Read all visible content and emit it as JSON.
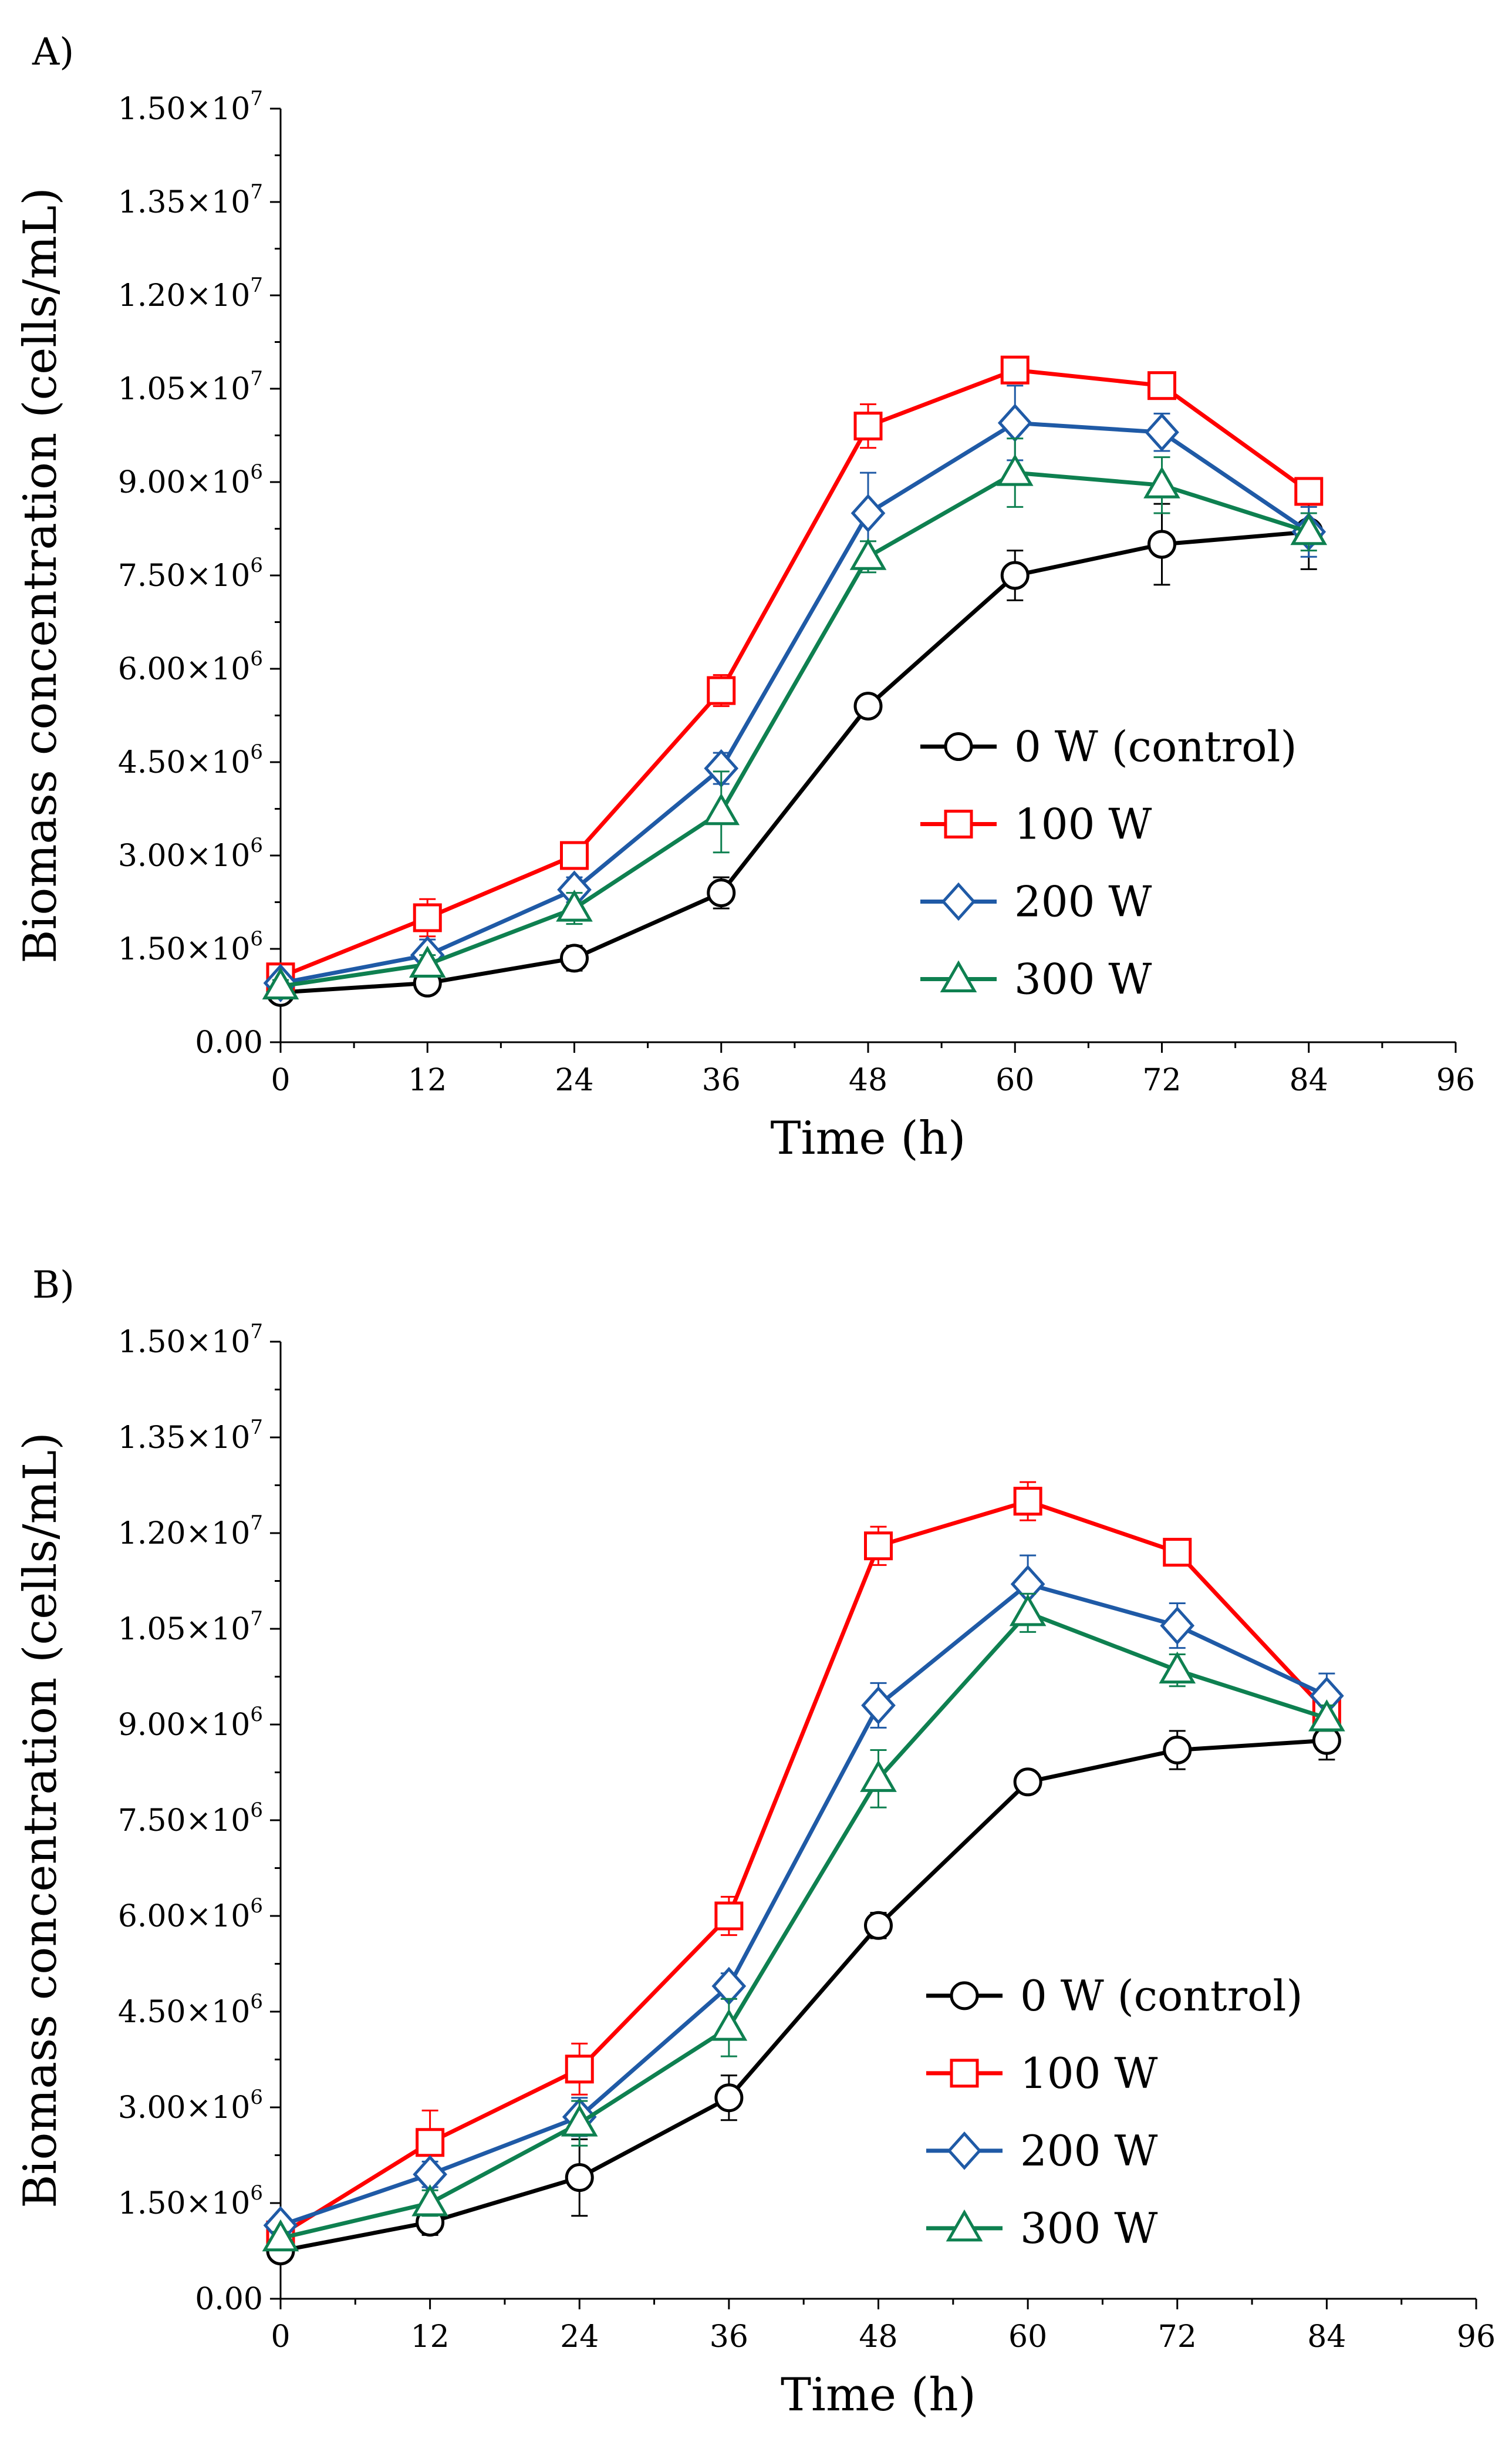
{
  "chart_data": [
    {
      "panel_label": "A)",
      "type": "line",
      "xlabel": "Time (h)",
      "ylabel": "Biomass concentration (cells/mL)",
      "xlim": [
        0,
        96
      ],
      "ylim": [
        0,
        15000000
      ],
      "x_ticks": [
        0,
        12,
        24,
        36,
        48,
        60,
        72,
        84,
        96
      ],
      "y_ticks": [
        {
          "value": 0,
          "mantissa": "0.00",
          "exp": ""
        },
        {
          "value": 1500000,
          "mantissa": "1.50×10",
          "exp": "6"
        },
        {
          "value": 3000000,
          "mantissa": "3.00×10",
          "exp": "6"
        },
        {
          "value": 4500000,
          "mantissa": "4.50×10",
          "exp": "6"
        },
        {
          "value": 6000000,
          "mantissa": "6.00×10",
          "exp": "6"
        },
        {
          "value": 7500000,
          "mantissa": "7.50×10",
          "exp": "6"
        },
        {
          "value": 9000000,
          "mantissa": "9.00×10",
          "exp": "6"
        },
        {
          "value": 10500000,
          "mantissa": "1.05×10",
          "exp": "7"
        },
        {
          "value": 12000000,
          "mantissa": "1.20×10",
          "exp": "7"
        },
        {
          "value": 13500000,
          "mantissa": "1.35×10",
          "exp": "7"
        },
        {
          "value": 15000000,
          "mantissa": "1.50×10",
          "exp": "7"
        }
      ],
      "x": [
        0,
        12,
        24,
        36,
        48,
        60,
        72,
        84
      ],
      "series": [
        {
          "name": "0 W (control)",
          "color": "#000000",
          "marker": "circle",
          "values": [
            800000,
            950000,
            1350000,
            2400000,
            5400000,
            7500000,
            8000000,
            8200000
          ],
          "errors": [
            150000,
            100000,
            200000,
            250000,
            80000,
            400000,
            650000,
            600000
          ]
        },
        {
          "name": "100 W",
          "color": "#ff0000",
          "marker": "square",
          "values": [
            1050000,
            2000000,
            3000000,
            5650000,
            9900000,
            10800000,
            10550000,
            8850000
          ],
          "errors": [
            100000,
            300000,
            200000,
            250000,
            350000,
            200000,
            200000,
            150000
          ]
        },
        {
          "name": "200 W",
          "color": "#1f5aa6",
          "marker": "diamond",
          "values": [
            950000,
            1400000,
            2450000,
            4400000,
            8500000,
            9950000,
            9800000,
            8200000
          ],
          "errors": [
            100000,
            250000,
            200000,
            250000,
            650000,
            600000,
            300000,
            400000
          ]
        },
        {
          "name": "300 W",
          "color": "#0e8050",
          "marker": "triangle",
          "values": [
            900000,
            1250000,
            2150000,
            3700000,
            7800000,
            9150000,
            8950000,
            8200000
          ],
          "errors": [
            100000,
            150000,
            250000,
            650000,
            250000,
            550000,
            450000,
            300000
          ]
        }
      ]
    },
    {
      "panel_label": "B)",
      "type": "line",
      "xlabel": "Time (h)",
      "ylabel": "Biomass concentration (cells/mL)",
      "xlim": [
        0,
        96
      ],
      "ylim": [
        0,
        15000000
      ],
      "x_ticks": [
        0,
        12,
        24,
        36,
        48,
        60,
        72,
        84,
        96
      ],
      "y_ticks": [
        {
          "value": 0,
          "mantissa": "0.00",
          "exp": ""
        },
        {
          "value": 1500000,
          "mantissa": "1.50×10",
          "exp": "6"
        },
        {
          "value": 3000000,
          "mantissa": "3.00×10",
          "exp": "6"
        },
        {
          "value": 4500000,
          "mantissa": "4.50×10",
          "exp": "6"
        },
        {
          "value": 6000000,
          "mantissa": "6.00×10",
          "exp": "6"
        },
        {
          "value": 7500000,
          "mantissa": "7.50×10",
          "exp": "6"
        },
        {
          "value": 9000000,
          "mantissa": "9.00×10",
          "exp": "6"
        },
        {
          "value": 10500000,
          "mantissa": "1.05×10",
          "exp": "7"
        },
        {
          "value": 12000000,
          "mantissa": "1.20×10",
          "exp": "7"
        },
        {
          "value": 13500000,
          "mantissa": "1.35×10",
          "exp": "7"
        },
        {
          "value": 15000000,
          "mantissa": "1.50×10",
          "exp": "7"
        }
      ],
      "x": [
        0,
        12,
        24,
        36,
        48,
        60,
        72,
        84
      ],
      "series": [
        {
          "name": "0 W (control)",
          "color": "#000000",
          "marker": "circle",
          "values": [
            750000,
            1200000,
            1900000,
            3150000,
            5850000,
            8100000,
            8600000,
            8750000
          ],
          "errors": [
            150000,
            200000,
            600000,
            350000,
            200000,
            100000,
            300000,
            300000
          ]
        },
        {
          "name": "100 W",
          "color": "#ff0000",
          "marker": "square",
          "values": [
            1000000,
            2450000,
            3600000,
            6000000,
            11800000,
            12500000,
            11700000,
            9200000
          ],
          "errors": [
            150000,
            500000,
            400000,
            300000,
            300000,
            300000,
            100000,
            300000
          ]
        },
        {
          "name": "200 W",
          "color": "#1f5aa6",
          "marker": "diamond",
          "values": [
            1150000,
            1950000,
            2850000,
            4900000,
            9300000,
            11200000,
            10550000,
            9450000
          ],
          "errors": [
            100000,
            200000,
            300000,
            200000,
            350000,
            450000,
            350000,
            350000
          ]
        },
        {
          "name": "300 W",
          "color": "#0e8050",
          "marker": "triangle",
          "values": [
            950000,
            1500000,
            2750000,
            4250000,
            8150000,
            10750000,
            9850000,
            9100000
          ],
          "errors": [
            100000,
            200000,
            350000,
            450000,
            450000,
            300000,
            250000,
            200000
          ]
        }
      ]
    }
  ]
}
